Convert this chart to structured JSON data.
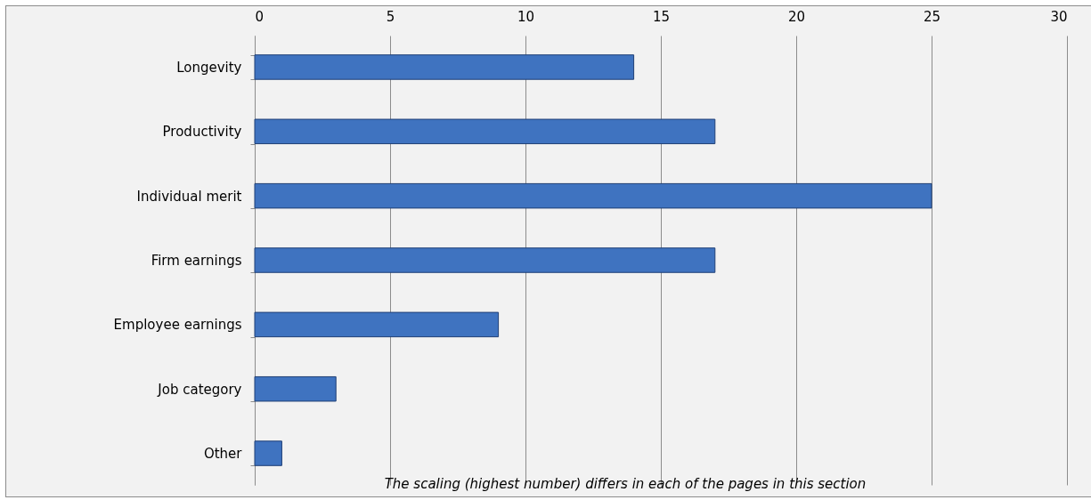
{
  "chart_data": {
    "type": "bar",
    "orientation": "horizontal",
    "categories": [
      "Longevity",
      "Productivity",
      "Individual merit",
      "Firm earnings",
      "Employee earnings",
      "Job category",
      "Other"
    ],
    "values": [
      14,
      17,
      25,
      17,
      9,
      3,
      1
    ],
    "color": "#3f73c0",
    "xlim": [
      0,
      30
    ],
    "xticks": [
      0,
      5,
      10,
      15,
      20,
      25,
      30
    ],
    "grid": "x",
    "annotations": [
      "The scaling (highest number) differs in each of the pages in this section"
    ]
  }
}
